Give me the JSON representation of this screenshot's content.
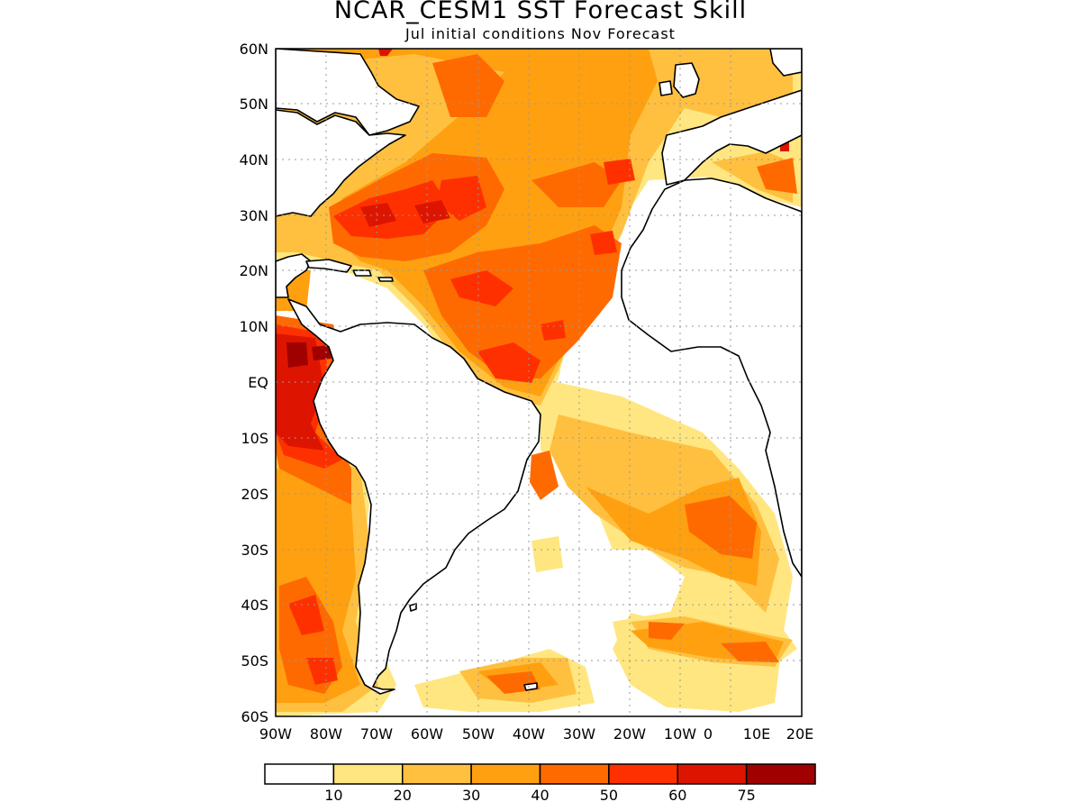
{
  "title": "NCAR_CESM1 SST Forecast Skill",
  "subtitle": "Jul initial conditions  Nov Forecast",
  "map": {
    "lon_range": [
      -90,
      20
    ],
    "lat_range": [
      -60,
      60
    ],
    "grid": "dotted",
    "lat_labels": [
      "60N",
      "50N",
      "40N",
      "30N",
      "20N",
      "10N",
      "EQ",
      "10S",
      "20S",
      "30S",
      "40S",
      "50S",
      "60S"
    ],
    "lon_labels": [
      "90W",
      "80W",
      "70W",
      "60W",
      "50W",
      "40W",
      "30W",
      "20W",
      "10W",
      "0",
      "10E",
      "20E"
    ]
  },
  "colorbar": {
    "labels": [
      "10",
      "20",
      "30",
      "40",
      "50",
      "60",
      "75"
    ],
    "colors": [
      "#ffffff",
      "#ffe680",
      "#ffc040",
      "#ffa010",
      "#ff6a00",
      "#ff3000",
      "#dd1500",
      "#a00000"
    ]
  },
  "colors": {
    "land": "#ffffff",
    "coastline": "#000000"
  }
}
